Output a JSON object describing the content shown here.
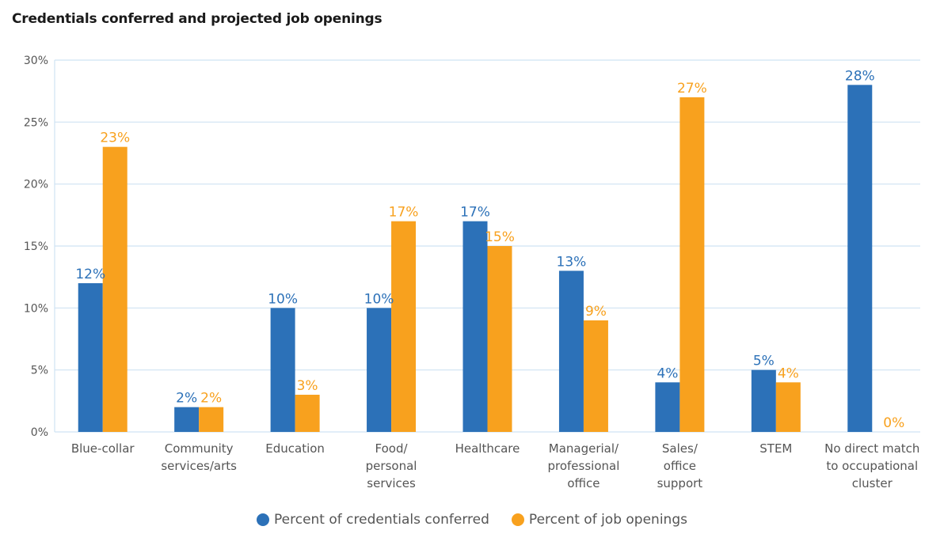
{
  "chart_data": {
    "type": "bar",
    "title": "Credentials conferred and projected job openings",
    "xlabel": "",
    "ylabel": "",
    "ylim": [
      0,
      30
    ],
    "yticks": [
      0,
      5,
      10,
      15,
      20,
      25,
      30
    ],
    "ytick_labels": [
      "0%",
      "5%",
      "10%",
      "15%",
      "20%",
      "25%",
      "30%"
    ],
    "grid": true,
    "legend_position": "bottom-center",
    "categories": [
      [
        "Blue-collar"
      ],
      [
        "Community",
        "services/arts"
      ],
      [
        "Education"
      ],
      [
        "Food/",
        "personal",
        "services"
      ],
      [
        "Healthcare"
      ],
      [
        "Managerial/",
        "professional",
        "office"
      ],
      [
        "Sales/",
        "office",
        "support"
      ],
      [
        "STEM"
      ],
      [
        "No direct match",
        "to occupational",
        "cluster"
      ]
    ],
    "series": [
      {
        "name": "Percent of credentials conferred",
        "color": "#2c71b8",
        "values": [
          12,
          2,
          10,
          10,
          17,
          13,
          4,
          5,
          28
        ],
        "labels": [
          "12%",
          "2%",
          "10%",
          "10%",
          "17%",
          "13%",
          "4%",
          "5%",
          "28%"
        ]
      },
      {
        "name": "Percent of job openings",
        "color": "#f8a11e",
        "values": [
          23,
          2,
          3,
          17,
          15,
          9,
          27,
          4,
          0
        ],
        "labels": [
          "23%",
          "2%",
          "3%",
          "17%",
          "15%",
          "9%",
          "27%",
          "4%",
          "0%"
        ]
      }
    ]
  },
  "colors": {
    "grid": "#cfe3f3",
    "tick_text": "#555555",
    "title_text": "#1a1a1a"
  }
}
